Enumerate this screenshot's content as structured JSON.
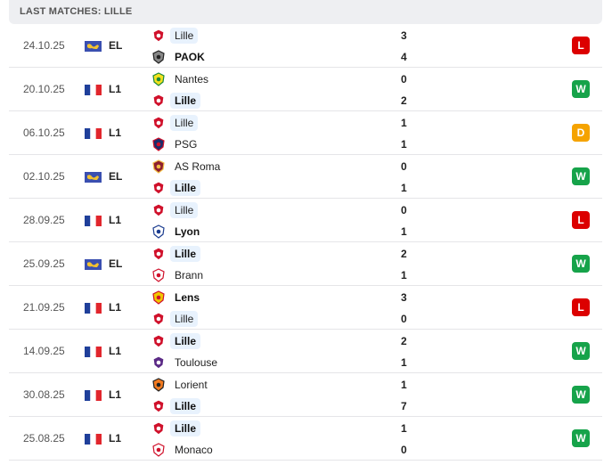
{
  "header": {
    "title": "LAST MATCHES: LILLE"
  },
  "colors": {
    "W": "#16a34a",
    "L": "#dc0000",
    "D": "#f5a300",
    "highlight": "#e8f2fd"
  },
  "matches": [
    {
      "date": "24.10.25",
      "league": "EL",
      "flag": "europe",
      "home": {
        "name": "Lille",
        "bold": false,
        "hl": true,
        "logo": "lille"
      },
      "away": {
        "name": "PAOK",
        "bold": true,
        "hl": false,
        "logo": "paok"
      },
      "home_score": "3",
      "away_score": "4",
      "result": "L"
    },
    {
      "date": "20.10.25",
      "league": "L1",
      "flag": "france",
      "home": {
        "name": "Nantes",
        "bold": false,
        "hl": false,
        "logo": "nantes"
      },
      "away": {
        "name": "Lille",
        "bold": true,
        "hl": true,
        "logo": "lille"
      },
      "home_score": "0",
      "away_score": "2",
      "result": "W"
    },
    {
      "date": "06.10.25",
      "league": "L1",
      "flag": "france",
      "home": {
        "name": "Lille",
        "bold": false,
        "hl": true,
        "logo": "lille"
      },
      "away": {
        "name": "PSG",
        "bold": false,
        "hl": false,
        "logo": "psg"
      },
      "home_score": "1",
      "away_score": "1",
      "result": "D"
    },
    {
      "date": "02.10.25",
      "league": "EL",
      "flag": "europe",
      "home": {
        "name": "AS Roma",
        "bold": false,
        "hl": false,
        "logo": "roma"
      },
      "away": {
        "name": "Lille",
        "bold": true,
        "hl": true,
        "logo": "lille"
      },
      "home_score": "0",
      "away_score": "1",
      "result": "W"
    },
    {
      "date": "28.09.25",
      "league": "L1",
      "flag": "france",
      "home": {
        "name": "Lille",
        "bold": false,
        "hl": true,
        "logo": "lille"
      },
      "away": {
        "name": "Lyon",
        "bold": true,
        "hl": false,
        "logo": "lyon"
      },
      "home_score": "0",
      "away_score": "1",
      "result": "L"
    },
    {
      "date": "25.09.25",
      "league": "EL",
      "flag": "europe",
      "home": {
        "name": "Lille",
        "bold": true,
        "hl": true,
        "logo": "lille"
      },
      "away": {
        "name": "Brann",
        "bold": false,
        "hl": false,
        "logo": "brann"
      },
      "home_score": "2",
      "away_score": "1",
      "result": "W"
    },
    {
      "date": "21.09.25",
      "league": "L1",
      "flag": "france",
      "home": {
        "name": "Lens",
        "bold": true,
        "hl": false,
        "logo": "lens"
      },
      "away": {
        "name": "Lille",
        "bold": false,
        "hl": true,
        "logo": "lille"
      },
      "home_score": "3",
      "away_score": "0",
      "result": "L"
    },
    {
      "date": "14.09.25",
      "league": "L1",
      "flag": "france",
      "home": {
        "name": "Lille",
        "bold": true,
        "hl": true,
        "logo": "lille"
      },
      "away": {
        "name": "Toulouse",
        "bold": false,
        "hl": false,
        "logo": "toulouse"
      },
      "home_score": "2",
      "away_score": "1",
      "result": "W"
    },
    {
      "date": "30.08.25",
      "league": "L1",
      "flag": "france",
      "home": {
        "name": "Lorient",
        "bold": false,
        "hl": false,
        "logo": "lorient"
      },
      "away": {
        "name": "Lille",
        "bold": true,
        "hl": true,
        "logo": "lille"
      },
      "home_score": "1",
      "away_score": "7",
      "result": "W"
    },
    {
      "date": "25.08.25",
      "league": "L1",
      "flag": "france",
      "home": {
        "name": "Lille",
        "bold": true,
        "hl": true,
        "logo": "lille"
      },
      "away": {
        "name": "Monaco",
        "bold": false,
        "hl": false,
        "logo": "monaco"
      },
      "home_score": "1",
      "away_score": "0",
      "result": "W"
    }
  ]
}
